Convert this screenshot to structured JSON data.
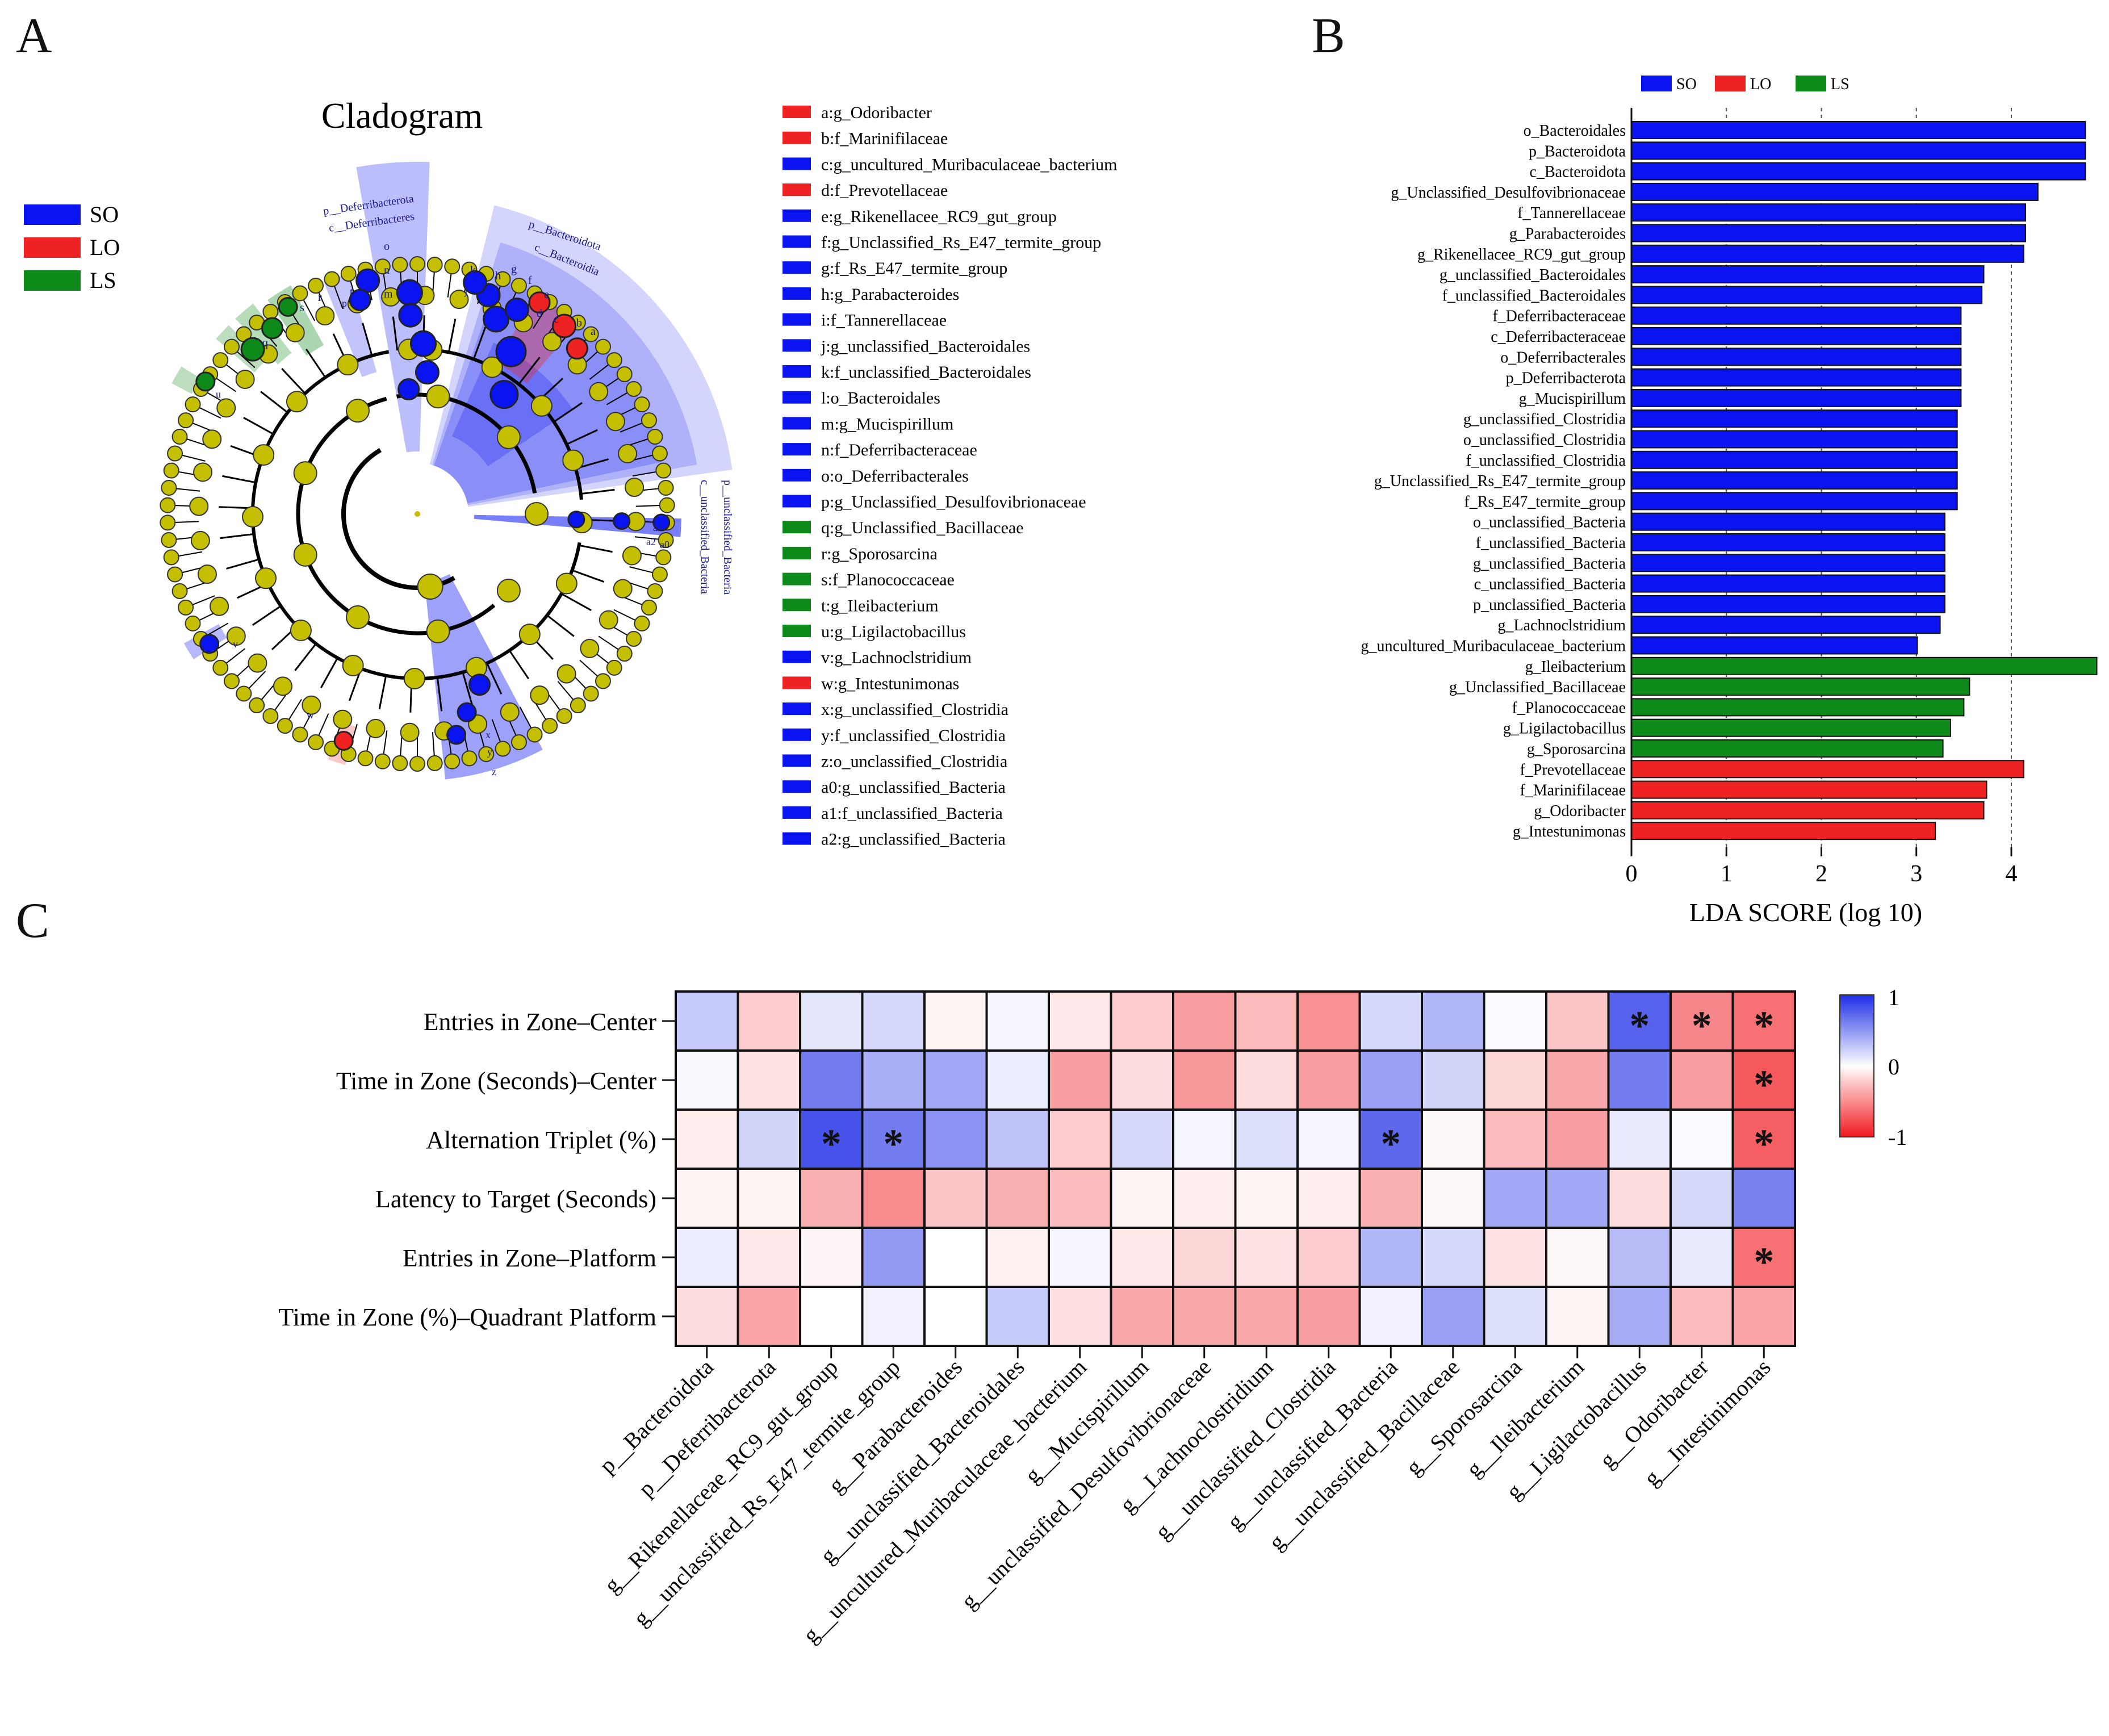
{
  "panels": {
    "a": "A",
    "b": "B",
    "c": "C"
  },
  "colors": {
    "SO": "#0a14f0",
    "LO": "#ee2222",
    "LS": "#0e8a1a",
    "node": "#c4bf00",
    "heat_pos": "#2030e0",
    "heat_neg": "#f02020"
  },
  "cladogram": {
    "title": "Cladogram",
    "legend": [
      {
        "name": "SO",
        "color": "#0a14f0"
      },
      {
        "name": "LO",
        "color": "#ee2222"
      },
      {
        "name": "LS",
        "color": "#0e8a1a"
      }
    ],
    "key": [
      {
        "text": "a:g_Odoribacter",
        "group": "LO"
      },
      {
        "text": "b:f_Marinifilaceae",
        "group": "LO"
      },
      {
        "text": "c:g_uncultured_Muribaculaceae_bacterium",
        "group": "SO"
      },
      {
        "text": "d:f_Prevotellaceae",
        "group": "LO"
      },
      {
        "text": "e:g_Rikenellacee_RC9_gut_group",
        "group": "SO"
      },
      {
        "text": "f:g_Unclassified_Rs_E47_termite_group",
        "group": "SO"
      },
      {
        "text": "g:f_Rs_E47_termite_group",
        "group": "SO"
      },
      {
        "text": "h:g_Parabacteroides",
        "group": "SO"
      },
      {
        "text": "i:f_Tannerellaceae",
        "group": "SO"
      },
      {
        "text": "j:g_unclassified_Bacteroidales",
        "group": "SO"
      },
      {
        "text": "k:f_unclassified_Bacteroidales",
        "group": "SO"
      },
      {
        "text": "l:o_Bacteroidales",
        "group": "SO"
      },
      {
        "text": "m:g_Mucispirillum",
        "group": "SO"
      },
      {
        "text": "n:f_Deferribacteraceae",
        "group": "SO"
      },
      {
        "text": "o:o_Deferribacterales",
        "group": "SO"
      },
      {
        "text": "p:g_Unclassified_Desulfovibrionaceae",
        "group": "SO"
      },
      {
        "text": "q:g_Unclassified_Bacillaceae",
        "group": "LS"
      },
      {
        "text": "r:g_Sporosarcina",
        "group": "LS"
      },
      {
        "text": "s:f_Planococcaceae",
        "group": "LS"
      },
      {
        "text": "t:g_Ileibacterium",
        "group": "LS"
      },
      {
        "text": "u:g_Ligilactobacillus",
        "group": "LS"
      },
      {
        "text": "v:g_Lachnoclstridium",
        "group": "SO"
      },
      {
        "text": "w:g_Intestunimonas",
        "group": "LO"
      },
      {
        "text": "x:g_unclassified_Clostridia",
        "group": "SO"
      },
      {
        "text": "y:f_unclassified_Clostridia",
        "group": "SO"
      },
      {
        "text": "z:o_unclassified_Clostridia",
        "group": "SO"
      },
      {
        "text": "a0:g_unclassified_Bacteria",
        "group": "SO"
      },
      {
        "text": "a1:f_unclassified_Bacteria",
        "group": "SO"
      },
      {
        "text": "a2:g_unclassified_Bacteria",
        "group": "SO"
      }
    ],
    "highlight_labels": [
      "p__Deferribacterota",
      "c__Deferribacteres",
      "p__Bacteroidota",
      "c__Bacteroidia",
      "p__unclassified_Bacteria",
      "c__unclassified_Bacteria"
    ],
    "letters_top": [
      "o",
      "n",
      "m"
    ],
    "letters_top_right": [
      "k",
      "j",
      "i",
      "h",
      "g",
      "f",
      "e",
      "d",
      "c",
      "b",
      "a"
    ],
    "letters_left": [
      "t",
      "s",
      "r",
      "q"
    ],
    "letters_misc": [
      "u",
      "v",
      "w",
      "x",
      "y",
      "z",
      "a2",
      "a1",
      "a0",
      "p"
    ]
  },
  "chart_data": [
    {
      "type": "bar",
      "orientation": "horizontal",
      "xlabel": "LDA SCORE (log 10)",
      "xlim": [
        0,
        4.9
      ],
      "xticks": [
        "0",
        "1",
        "2",
        "3",
        "4"
      ],
      "legend": [
        {
          "name": "SO",
          "color": "#0a14f0"
        },
        {
          "name": "LO",
          "color": "#ee2222"
        },
        {
          "name": "LS",
          "color": "#0e8a1a"
        }
      ],
      "legend_position": "top",
      "categories": [
        "o_Bacteroidales",
        "p_Bacteroidota",
        "c_Bacteroidota",
        "g_Unclassified_Desulfovibrionaceae",
        "f_Tannerellaceae",
        "g_Parabacteroides",
        "g_Rikenellacee_RC9_gut_group",
        "g_unclassified_Bacteroidales",
        "f_unclassified_Bacteroidales",
        "f_Deferribacteraceae",
        "c_Deferribacteraceae",
        "o_Deferribacterales",
        "p_Deferribacterota",
        "g_Mucispirillum",
        "g_unclassified_Clostridia",
        "o_unclassified_Clostridia",
        "f_unclassified_Clostridia",
        "g_Unclassified_Rs_E47_termite_group",
        "f_Rs_E47_termite_group",
        "o_unclassified_Bacteria",
        "f_unclassified_Bacteria",
        "g_unclassified_Bacteria",
        "c_unclassified_Bacteria",
        "p_unclassified_Bacteria",
        "g_Lachnoclstridium",
        "g_uncultured_Muribaculaceae_bacterium",
        "g_Ileibacterium",
        "g_Unclassified_Bacillaceae",
        "f_Planococcaceae",
        "g_Ligilactobacillus",
        "g_Sporosarcina",
        "f_Prevotellaceae",
        "f_Marinifilaceae",
        "g_Odoribacter",
        "g_Intestunimonas"
      ],
      "values": [
        4.78,
        4.78,
        4.78,
        4.28,
        4.15,
        4.15,
        4.13,
        3.71,
        3.69,
        3.47,
        3.47,
        3.47,
        3.47,
        3.47,
        3.43,
        3.43,
        3.43,
        3.43,
        3.43,
        3.3,
        3.3,
        3.3,
        3.3,
        3.3,
        3.25,
        3.01,
        4.9,
        3.56,
        3.5,
        3.36,
        3.28,
        4.13,
        3.74,
        3.71,
        3.2
      ],
      "groups": [
        "SO",
        "SO",
        "SO",
        "SO",
        "SO",
        "SO",
        "SO",
        "SO",
        "SO",
        "SO",
        "SO",
        "SO",
        "SO",
        "SO",
        "SO",
        "SO",
        "SO",
        "SO",
        "SO",
        "SO",
        "SO",
        "SO",
        "SO",
        "SO",
        "SO",
        "SO",
        "LS",
        "LS",
        "LS",
        "LS",
        "LS",
        "LO",
        "LO",
        "LO",
        "LO"
      ]
    },
    {
      "type": "heatmap",
      "rows": [
        "Entries in Zone–Center",
        "Time in Zone (Seconds)–Center",
        "Alternation Triplet (%)",
        "Latency to Target (Seconds)",
        "Entries in Zone–Platform",
        "Time in Zone (%)–Quadrant Platform"
      ],
      "columns": [
        "p__Bacteroidota",
        "p__Deferribacterota",
        "g__Rikenellaceae_RC9_gut_group",
        "g__unclassified_Rs_E47_termite_group",
        "g__Parabacteroides",
        "g__unclassified_Bacteroidales",
        "g__uncultured_Muribaculaceae_bacterium",
        "g__Mucispirillum",
        "g__unclassified_Desulfovibrionaceae",
        "g__Lachnoclostridium",
        "g__unclassified_Clostridia",
        "g__unclassified_Bacteria",
        "g__unclassified_Bacillaceae",
        "g__Sporosarcina",
        "g__Ileibacterium",
        "g__Ligilactobacillus",
        "g__Odoribacter",
        "g__Intestinimonas"
      ],
      "values": [
        [
          0.25,
          -0.22,
          0.12,
          0.18,
          -0.05,
          0.04,
          -0.1,
          -0.22,
          -0.42,
          -0.3,
          -0.48,
          0.18,
          0.35,
          0.02,
          -0.25,
          0.75,
          -0.52,
          -0.62
        ],
        [
          0.03,
          -0.12,
          0.62,
          0.38,
          0.42,
          0.08,
          -0.42,
          -0.15,
          -0.45,
          -0.15,
          -0.42,
          0.45,
          0.2,
          -0.18,
          -0.38,
          0.62,
          -0.42,
          -0.72
        ],
        [
          -0.08,
          0.2,
          0.82,
          0.62,
          0.52,
          0.28,
          -0.22,
          0.18,
          0.05,
          0.15,
          0.05,
          0.72,
          -0.03,
          -0.3,
          -0.42,
          0.1,
          0.02,
          -0.7
        ],
        [
          -0.05,
          -0.05,
          -0.35,
          -0.5,
          -0.25,
          -0.35,
          -0.3,
          -0.05,
          -0.08,
          -0.05,
          -0.08,
          -0.35,
          -0.03,
          0.42,
          0.42,
          -0.15,
          0.18,
          0.6
        ],
        [
          0.08,
          -0.1,
          -0.04,
          0.48,
          0.0,
          -0.06,
          0.04,
          -0.1,
          -0.18,
          -0.12,
          -0.22,
          0.35,
          0.18,
          -0.12,
          -0.03,
          0.32,
          0.1,
          -0.62
        ],
        [
          -0.15,
          -0.4,
          0.0,
          0.06,
          0.0,
          0.25,
          -0.14,
          -0.38,
          -0.38,
          -0.38,
          -0.42,
          0.06,
          0.45,
          0.15,
          -0.05,
          0.4,
          -0.3,
          -0.4
        ]
      ],
      "significant": [
        [
          0,
          15
        ],
        [
          0,
          16
        ],
        [
          0,
          17
        ],
        [
          1,
          17
        ],
        [
          2,
          2
        ],
        [
          2,
          3
        ],
        [
          2,
          11
        ],
        [
          2,
          17
        ],
        [
          4,
          17
        ]
      ],
      "star": "*",
      "scale": {
        "max": "1",
        "mid": "0",
        "min": "-1"
      }
    }
  ]
}
